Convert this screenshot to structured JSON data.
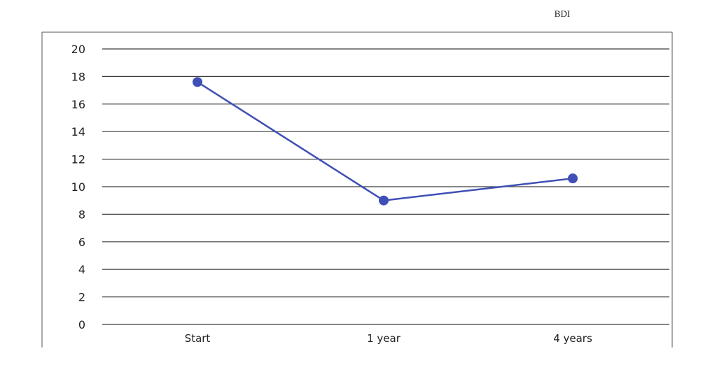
{
  "chart_data": {
    "type": "line",
    "title": "BDI",
    "xlabel": "",
    "ylabel": "",
    "categories": [
      "Start",
      "1 year",
      "4 years"
    ],
    "series": [
      {
        "values": [
          17.6,
          9.0,
          10.6
        ],
        "color": "#3f4fb5"
      }
    ],
    "ylim": [
      0,
      20
    ],
    "yticks": [
      "0",
      "2",
      "4",
      "6",
      "8",
      "10",
      "12",
      "14",
      "16",
      "18",
      "20"
    ],
    "grid": true,
    "legend": "none"
  }
}
